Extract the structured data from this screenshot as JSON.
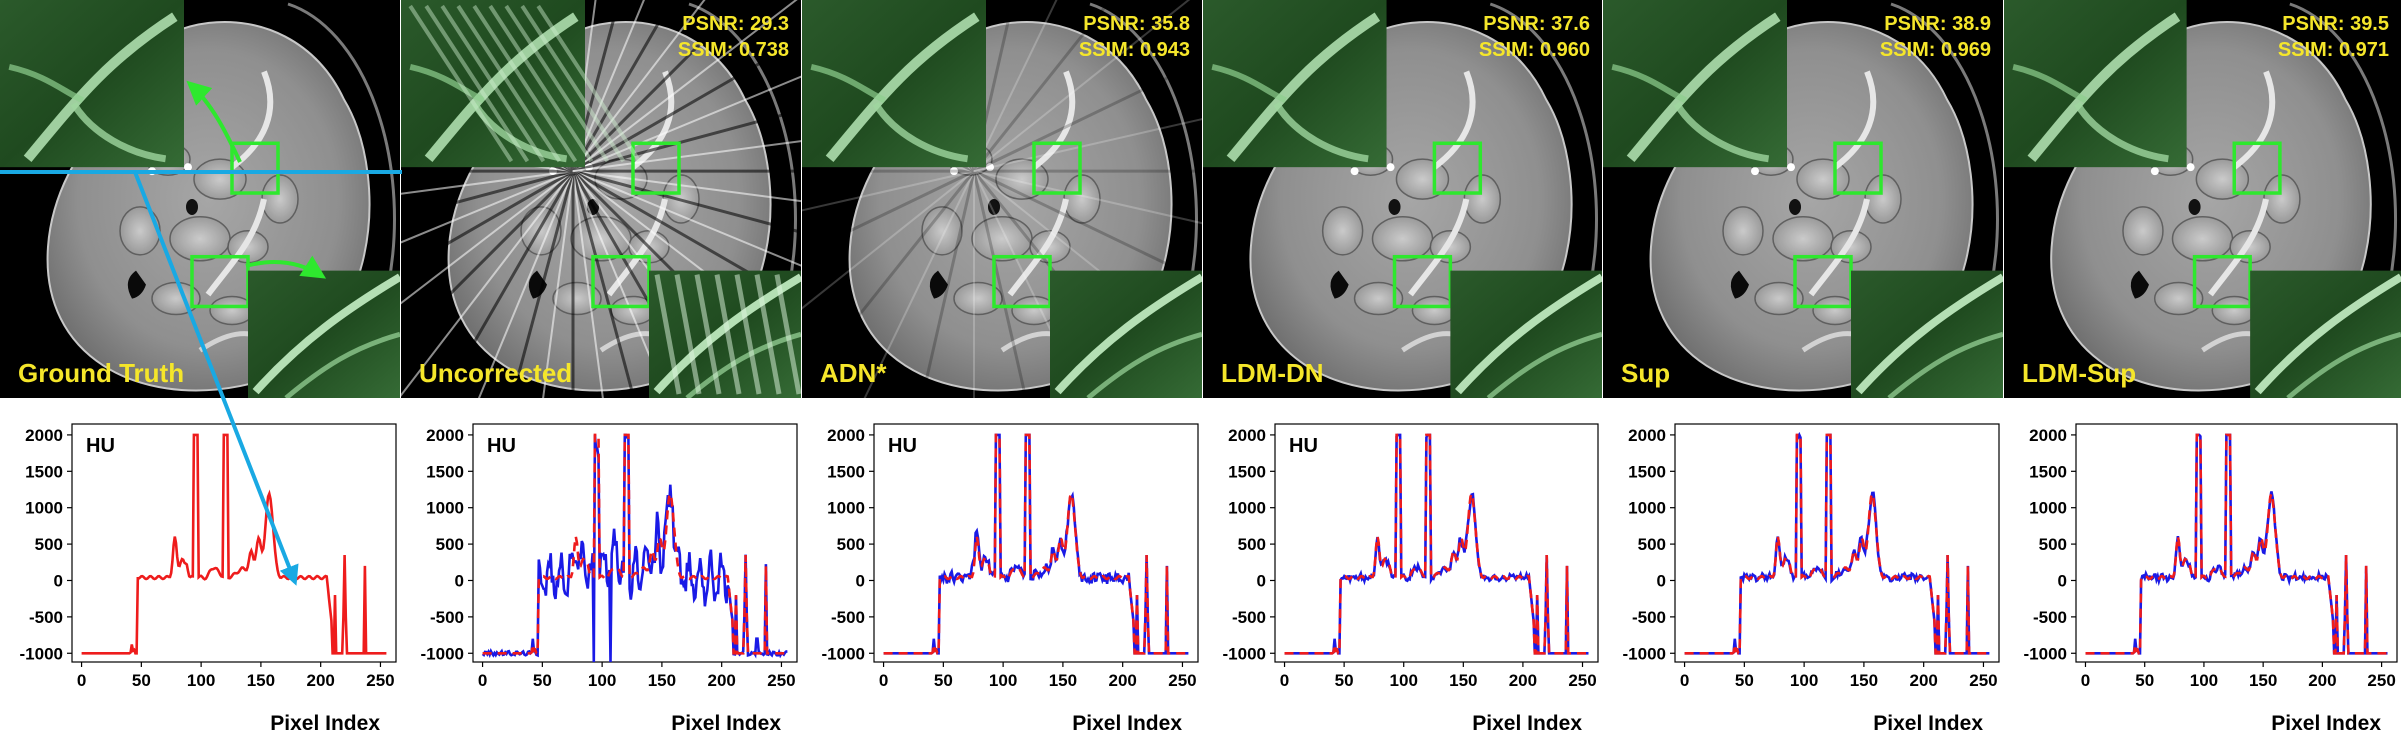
{
  "figure": {
    "xlabel": "Pixel Index",
    "hu_label": "HU",
    "colors": {
      "reference": "#ee1c1c",
      "method": "#1a1ae6",
      "roi_box": "#2ee82e",
      "label_text": "#f5e62a",
      "profile_line": "#19a9e3"
    },
    "yticks": [
      2000,
      1500,
      1000,
      500,
      0,
      -500,
      -1000
    ],
    "xticks": [
      0,
      50,
      100,
      150,
      200,
      250
    ],
    "panels": [
      {
        "id": "gt",
        "label": "Ground Truth",
        "psnr": "",
        "ssim": "",
        "show_hu": true,
        "artifact": "none"
      },
      {
        "id": "unc",
        "label": "Uncorrected",
        "psnr": "PSNR: 29.3",
        "ssim": "SSIM: 0.738",
        "show_hu": true,
        "artifact": "strong"
      },
      {
        "id": "adn",
        "label": "ADN*",
        "psnr": "PSNR: 35.8",
        "ssim": "SSIM: 0.943",
        "show_hu": true,
        "artifact": "mild"
      },
      {
        "id": "ldmdn",
        "label": "LDM-DN",
        "psnr": "PSNR: 37.6",
        "ssim": "SSIM: 0.960",
        "show_hu": true,
        "artifact": "low"
      },
      {
        "id": "sup",
        "label": "Sup",
        "psnr": "PSNR: 38.9",
        "ssim": "SSIM: 0.969",
        "show_hu": false,
        "artifact": "low"
      },
      {
        "id": "ldmsup",
        "label": "LDM-Sup",
        "psnr": "PSNR: 39.5",
        "ssim": "SSIM: 0.971",
        "show_hu": false,
        "artifact": "low"
      }
    ]
  }
}
